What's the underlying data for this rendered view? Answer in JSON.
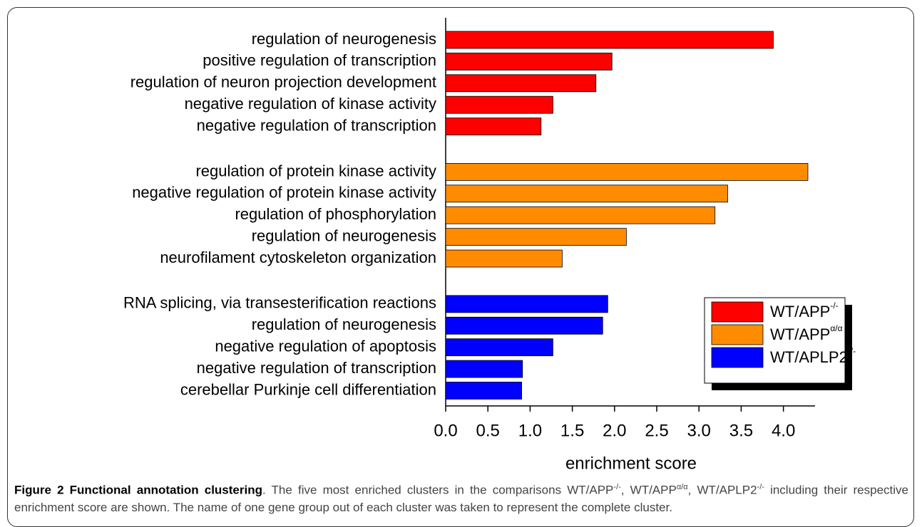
{
  "chart_data": {
    "type": "bar",
    "orientation": "horizontal",
    "series": [
      {
        "name": "WT/APP",
        "sup": "-/-",
        "color": "#ff0000",
        "categories": [
          "regulation of neurogenesis",
          "positive regulation of transcription",
          "regulation of neuron projection development",
          "negative regulation of kinase activity",
          "negative regulation of transcription"
        ],
        "values": [
          3.88,
          1.97,
          1.78,
          1.27,
          1.13
        ]
      },
      {
        "name": "WT/APP",
        "sup": "α/α",
        "color": "#ff8c00",
        "categories": [
          "regulation of protein kinase activity",
          "negative regulation of protein kinase activity",
          "regulation of phosphorylation",
          "regulation of neurogenesis",
          "neurofilament cytoskeleton organization"
        ],
        "values": [
          4.29,
          3.34,
          3.19,
          2.14,
          1.38
        ]
      },
      {
        "name": "WT/APLP2",
        "sup": "-/-",
        "color": "#0000ff",
        "categories": [
          "RNA splicing, via transesterification reactions",
          "regulation of neurogenesis",
          "negative regulation of apoptosis",
          "negative regulation of transcription",
          "cerebellar Purkinje cell differentiation"
        ],
        "values": [
          1.92,
          1.86,
          1.27,
          0.91,
          0.9
        ]
      }
    ],
    "x_label": "enrichment score",
    "xlim": [
      0,
      4.4
    ],
    "xticks": [
      {
        "value": 0,
        "label": "0.0"
      },
      0.5,
      {
        "value": 1,
        "label": "1.0"
      },
      1.5,
      {
        "value": 2,
        "label": "2.0"
      },
      2.5,
      {
        "value": 3,
        "label": "3.0"
      },
      3.5,
      {
        "value": 4,
        "label": "4.0"
      }
    ],
    "legend": "lower right"
  },
  "caption": {
    "bold": "Figure 2 Functional annotation clustering",
    "parts": [
      ". The five most enriched clusters in the comparisons WT/APP",
      "-/-",
      ", WT/APP",
      "α/α",
      ", WT/APLP2",
      "-/-",
      " including their respective enrichment score are shown. The name of one gene group out of each cluster was taken to represent the complete cluster."
    ]
  }
}
